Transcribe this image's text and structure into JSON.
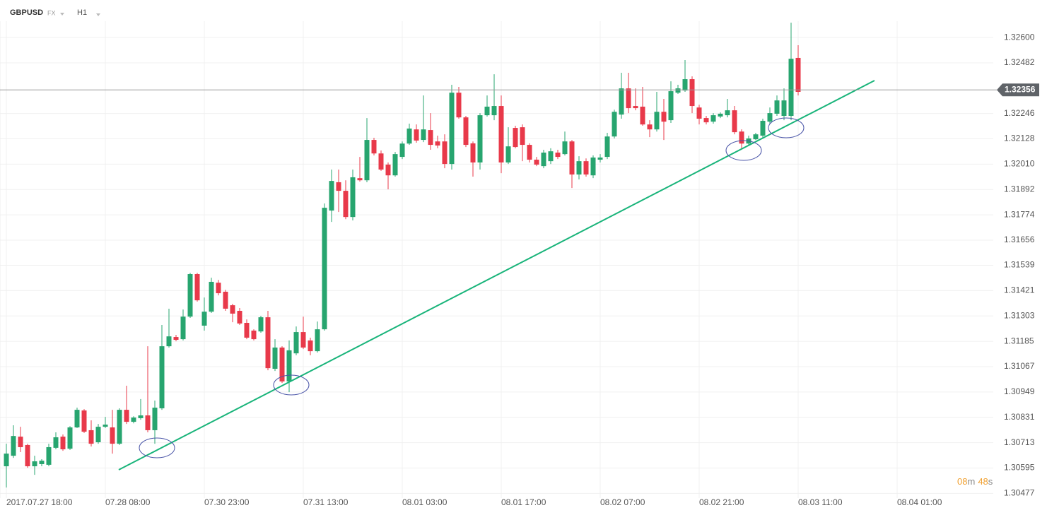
{
  "header": {
    "symbol": "GBPUSD",
    "market": "FX",
    "timeframe": "H1"
  },
  "countdown": {
    "minutes": "08",
    "minutes_unit": "m",
    "seconds": "48",
    "seconds_unit": "s"
  },
  "chart_data": {
    "type": "candlestick",
    "up_color": "#27a56f",
    "down_color": "#e8394a",
    "grid": true,
    "current_price": 1.32356,
    "open": [
      1.30603,
      1.30652,
      1.30741,
      1.30702,
      1.30603,
      1.30613,
      1.3061,
      1.30689,
      1.30741,
      1.30685,
      1.30784,
      1.30863,
      1.30771,
      1.30715,
      1.30787,
      1.30784,
      1.30708,
      1.30866,
      1.3081,
      1.30827,
      1.3084,
      1.30771,
      1.30873,
      1.31162,
      1.31205,
      1.31195,
      1.313,
      1.31498,
      1.31258,
      1.31323,
      1.31458,
      1.31416,
      1.31353,
      1.31327,
      1.31271,
      1.31235,
      1.31231,
      1.31297,
      1.31057,
      1.31156,
      1.30998,
      1.31129,
      1.31228,
      1.31189,
      1.31139,
      1.31241,
      1.31794,
      1.31926,
      1.31886,
      1.31764,
      1.31945,
      1.31935,
      1.32123,
      1.3206,
      1.32008,
      1.31958,
      1.32044,
      1.32106,
      1.32172,
      1.32123,
      1.32169,
      1.32116,
      1.32116,
      1.32011,
      1.32343,
      1.32228,
      1.32107,
      1.32018,
      1.32238,
      1.32238,
      1.32281,
      1.32018,
      1.32179,
      1.32182,
      1.321,
      1.32031,
      1.32001,
      1.32024,
      1.32064,
      1.32057,
      1.32116,
      1.31962,
      1.32024,
      1.31958,
      1.32031,
      1.32044,
      1.32139,
      1.32241,
      1.32363,
      1.32281,
      1.32278,
      1.32195,
      1.32172,
      1.32254,
      1.32215,
      1.32343,
      1.32353,
      1.32406,
      1.32274,
      1.32225,
      1.32208,
      1.32232,
      1.32238,
      1.32261,
      1.32162,
      1.32106,
      1.32126,
      1.32143,
      1.32208,
      1.32245,
      1.32235,
      1.32235,
      1.32505
    ],
    "high": [
      1.30708,
      1.30794,
      1.30787,
      1.30708,
      1.30652,
      1.30636,
      1.30708,
      1.30761,
      1.30751,
      1.3079,
      1.30876,
      1.30869,
      1.30817,
      1.308,
      1.30833,
      1.30866,
      1.30873,
      1.30978,
      1.30836,
      1.30916,
      1.31162,
      1.30909,
      1.31261,
      1.31337,
      1.31215,
      1.31333,
      1.31504,
      1.31504,
      1.31389,
      1.31481,
      1.31471,
      1.31425,
      1.3136,
      1.3134,
      1.31287,
      1.31241,
      1.31304,
      1.31327,
      1.31195,
      1.31162,
      1.31189,
      1.31254,
      1.313,
      1.31202,
      1.31277,
      1.31827,
      1.31985,
      1.31985,
      1.31935,
      1.31985,
      1.32044,
      1.32225,
      1.32133,
      1.32074,
      1.32018,
      1.32067,
      1.32116,
      1.32199,
      1.32195,
      1.3233,
      1.32248,
      1.32143,
      1.32149,
      1.3238,
      1.3237,
      1.32235,
      1.32116,
      1.32248,
      1.3233,
      1.32429,
      1.3233,
      1.32182,
      1.32189,
      1.32195,
      1.32107,
      1.32044,
      1.32077,
      1.32084,
      1.32077,
      1.32162,
      1.32123,
      1.32047,
      1.32037,
      1.32051,
      1.32057,
      1.32156,
      1.32264,
      1.32436,
      1.32436,
      1.32363,
      1.3237,
      1.32215,
      1.32347,
      1.32314,
      1.32396,
      1.3238,
      1.32495,
      1.32419,
      1.32287,
      1.32235,
      1.32248,
      1.32251,
      1.32314,
      1.32281,
      1.32172,
      1.32143,
      1.32156,
      1.32222,
      1.32274,
      1.3233,
      1.32363,
      1.32669,
      1.32564
    ],
    "low": [
      1.30504,
      1.30642,
      1.30669,
      1.30596,
      1.30563,
      1.30603,
      1.30603,
      1.30682,
      1.30675,
      1.30679,
      1.30781,
      1.30758,
      1.30695,
      1.30708,
      1.30781,
      1.30662,
      1.30702,
      1.308,
      1.30803,
      1.3082,
      1.30761,
      1.30708,
      1.30866,
      1.31156,
      1.31185,
      1.31189,
      1.31294,
      1.3137,
      1.31235,
      1.31317,
      1.31399,
      1.31327,
      1.31274,
      1.31261,
      1.31195,
      1.31189,
      1.31225,
      1.3105,
      1.31047,
      1.30991,
      1.30948,
      1.3112,
      1.31149,
      1.3112,
      1.31133,
      1.31235,
      1.31741,
      1.31787,
      1.31754,
      1.31748,
      1.31929,
      1.31926,
      1.32051,
      1.31979,
      1.31893,
      1.31952,
      1.32034,
      1.321,
      1.3211,
      1.32113,
      1.32077,
      1.32084,
      1.31991,
      1.31985,
      1.32222,
      1.3209,
      1.31952,
      1.31985,
      1.32232,
      1.32215,
      1.31968,
      1.32011,
      1.32084,
      1.32024,
      1.32018,
      1.32001,
      1.31991,
      1.32011,
      1.32034,
      1.32051,
      1.31899,
      1.31939,
      1.31952,
      1.31945,
      1.32018,
      1.32034,
      1.3213,
      1.32222,
      1.32248,
      1.32261,
      1.32189,
      1.32136,
      1.32162,
      1.32123,
      1.32202,
      1.32337,
      1.32347,
      1.32248,
      1.32195,
      1.32195,
      1.32199,
      1.32225,
      1.32228,
      1.32149,
      1.32084,
      1.32097,
      1.32123,
      1.32133,
      1.32199,
      1.32235,
      1.32215,
      1.32215,
      1.3233
    ],
    "close": [
      1.30662,
      1.30744,
      1.30692,
      1.30603,
      1.30626,
      1.30629,
      1.30692,
      1.30738,
      1.30682,
      1.30784,
      1.30866,
      1.30764,
      1.30708,
      1.30787,
      1.30797,
      1.30708,
      1.30866,
      1.3081,
      1.3083,
      1.3084,
      1.30771,
      1.30876,
      1.31162,
      1.31208,
      1.31192,
      1.313,
      1.31498,
      1.31376,
      1.31323,
      1.31462,
      1.31409,
      1.31337,
      1.31314,
      1.31268,
      1.31202,
      1.31195,
      1.31297,
      1.3106,
      1.31156,
      1.30998,
      1.31143,
      1.31228,
      1.31156,
      1.31139,
      1.31241,
      1.31807,
      1.31932,
      1.31886,
      1.31764,
      1.31949,
      1.31935,
      1.32123,
      1.3206,
      1.31985,
      1.31958,
      1.32057,
      1.32106,
      1.32176,
      1.3212,
      1.32172,
      1.321,
      1.32097,
      1.32011,
      1.32343,
      1.32228,
      1.321,
      1.32018,
      1.32238,
      1.32278,
      1.32281,
      1.32018,
      1.32093,
      1.3209,
      1.321,
      1.32031,
      1.32008,
      1.32064,
      1.3207,
      1.32044,
      1.32116,
      1.31962,
      1.32024,
      1.31962,
      1.32041,
      1.32041,
      1.32139,
      1.32254,
      1.32363,
      1.32271,
      1.32271,
      1.32195,
      1.32172,
      1.32254,
      1.32208,
      1.3235,
      1.32363,
      1.32406,
      1.32281,
      1.32222,
      1.32205,
      1.32238,
      1.32245,
      1.32261,
      1.32159,
      1.32106,
      1.3213,
      1.32149,
      1.32212,
      1.32248,
      1.32307,
      1.32307,
      1.32501,
      1.32347
    ],
    "ylim": [
      1.30455,
      1.32676
    ],
    "yticks": [
      {
        "value": 1.326,
        "label": "1.32600"
      },
      1.32482,
      1.32246,
      1.32128,
      {
        "value": 1.3201,
        "label": "1.32010"
      },
      1.31892,
      1.31774,
      1.31656,
      1.31539,
      1.31421,
      1.31303,
      1.31185,
      1.31067,
      1.30949,
      1.30831,
      1.30713,
      1.30595,
      1.30477
    ],
    "xlim": [
      -0.9,
      139.6
    ],
    "xticks": [
      {
        "value": 0,
        "label": "2017.07.27 18:00"
      },
      {
        "value": 14,
        "label": "07.28 08:00"
      },
      {
        "value": 28,
        "label": "07.30 23:00"
      },
      {
        "value": 42,
        "label": "07.31 13:00"
      },
      {
        "value": 56,
        "label": "08.01 03:00"
      },
      {
        "value": 70,
        "label": "08.01 17:00"
      },
      {
        "value": 84,
        "label": "08.02 07:00"
      },
      {
        "value": 98,
        "label": "08.02 21:00"
      },
      {
        "value": 112,
        "label": "08.03 11:00"
      },
      {
        "value": 126,
        "label": "08.04 01:00"
      }
    ]
  }
}
